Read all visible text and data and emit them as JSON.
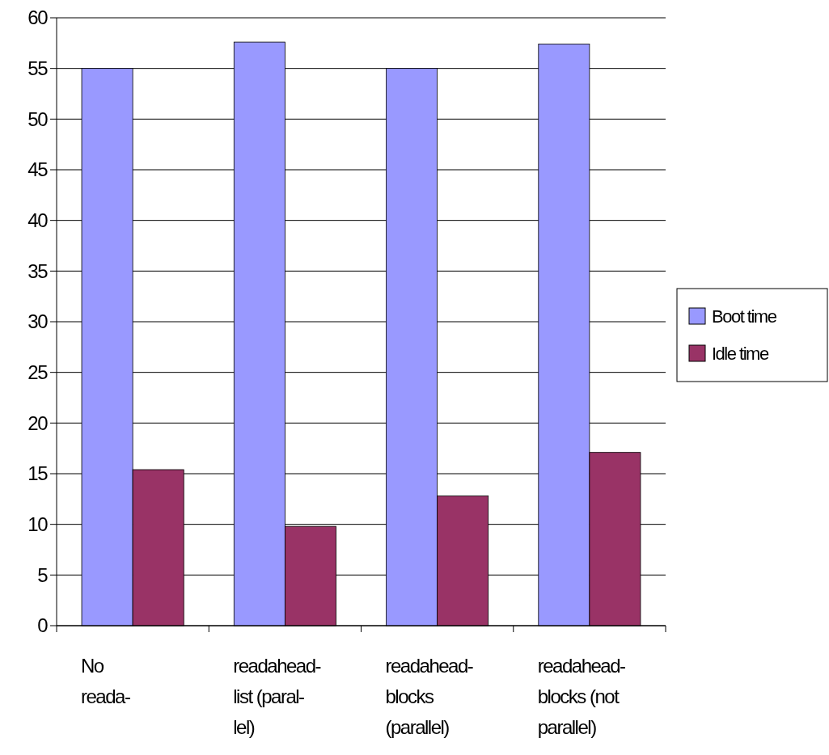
{
  "chart_data": {
    "type": "bar",
    "categories": [
      "No\nreada-",
      "readahead-\nlist (paral-\nlel)",
      "readahead-\nblocks\n(parallel)",
      "readahead-\nblocks (not\nparallel)"
    ],
    "series": [
      {
        "name": "Boot time",
        "color": "#9999ff",
        "values": [
          55.0,
          57.6,
          55.0,
          57.4
        ]
      },
      {
        "name": "Idle time",
        "color": "#993366",
        "values": [
          15.4,
          9.8,
          12.8,
          17.1
        ]
      }
    ],
    "ylim": [
      0,
      60
    ],
    "yticks": [
      0,
      5,
      10,
      15,
      20,
      25,
      30,
      35,
      40,
      45,
      50,
      55,
      60
    ],
    "grid": "y",
    "legend": "right"
  }
}
